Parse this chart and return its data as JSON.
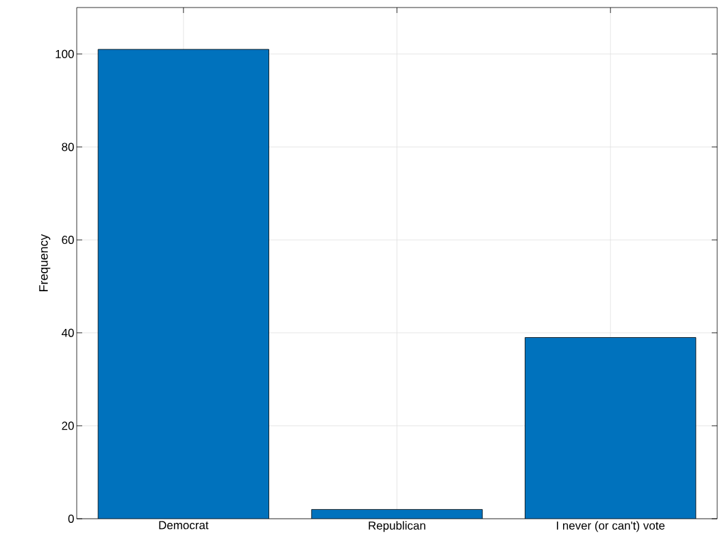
{
  "chart_data": {
    "type": "bar",
    "ylabel": "Frequency",
    "categories": [
      "Democrat",
      "Republican",
      "I never (or can't) vote"
    ],
    "values": [
      101,
      2,
      39
    ],
    "color": "#0072bd",
    "ylim": [
      0,
      110
    ],
    "yticks": [
      0,
      20,
      40,
      60,
      80,
      100
    ],
    "grid": true
  }
}
